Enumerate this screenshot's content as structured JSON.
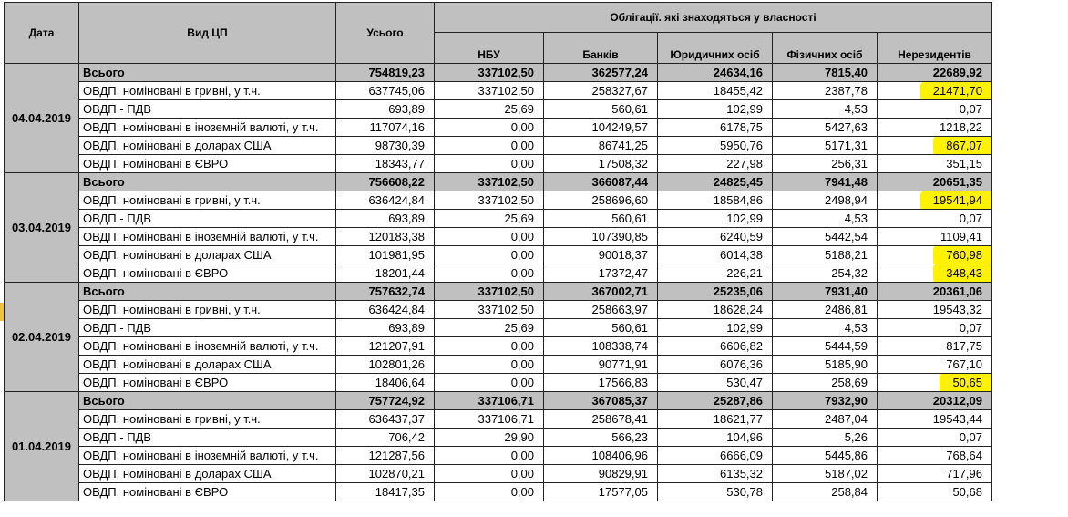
{
  "headers": {
    "date": "Дата",
    "type": "Вид ЦП",
    "total": "Усього",
    "group": "Облігації. які знаходяться у власності",
    "nbu": "НБУ",
    "banks": "Банків",
    "legal": "Юридичних осіб",
    "physical": "Фізичних осіб",
    "nonres": "Нерезидентів"
  },
  "highlight_color": "#fff200",
  "groups": [
    {
      "date": "04.04.2019",
      "rows": [
        {
          "label": "Всього",
          "total": "754819,23",
          "nbu": "337102,50",
          "banks": "362577,24",
          "legal": "24634,16",
          "physical": "7815,40",
          "nonres": "22689,92"
        },
        {
          "label": "ОВДП, номіновані в гривні, у т.ч.",
          "total": "637745,06",
          "nbu": "337102,50",
          "banks": "258327,67",
          "legal": "18455,42",
          "physical": "2387,78",
          "nonres": "21471,70"
        },
        {
          "label": "ОВДП - ПДВ",
          "total": "693,89",
          "nbu": "25,69",
          "banks": "560,61",
          "legal": "102,99",
          "physical": "4,53",
          "nonres": "0,07"
        },
        {
          "label": "ОВДП, номіновані в іноземній валюті, у т.ч.",
          "total": "117074,16",
          "nbu": "0,00",
          "banks": "104249,57",
          "legal": "6178,75",
          "physical": "5427,63",
          "nonres": "1218,22"
        },
        {
          "label": "ОВДП, номіновані в доларах США",
          "total": "98730,39",
          "nbu": "0,00",
          "banks": "86741,25",
          "legal": "5950,76",
          "physical": "5171,31",
          "nonres": "867,07"
        },
        {
          "label": "ОВДП, номіновані в ЄВРО",
          "total": "18343,77",
          "nbu": "0,00",
          "banks": "17508,32",
          "legal": "227,98",
          "physical": "256,31",
          "nonres": "351,15"
        }
      ]
    },
    {
      "date": "03.04.2019",
      "rows": [
        {
          "label": "Всього",
          "total": "756608,22",
          "nbu": "337102,50",
          "banks": "366087,44",
          "legal": "24825,45",
          "physical": "7941,48",
          "nonres": "20651,35"
        },
        {
          "label": "ОВДП, номіновані в гривні, у т.ч.",
          "total": "636424,84",
          "nbu": "337102,50",
          "banks": "258696,60",
          "legal": "18584,86",
          "physical": "2498,94",
          "nonres": "19541,94"
        },
        {
          "label": "ОВДП - ПДВ",
          "total": "693,89",
          "nbu": "25,69",
          "banks": "560,61",
          "legal": "102,99",
          "physical": "4,53",
          "nonres": "0,07"
        },
        {
          "label": "ОВДП, номіновані в іноземній валюті, у т.ч.",
          "total": "120183,38",
          "nbu": "0,00",
          "banks": "107390,85",
          "legal": "6240,59",
          "physical": "5442,54",
          "nonres": "1109,41"
        },
        {
          "label": "ОВДП, номіновані в доларах США",
          "total": "101981,95",
          "nbu": "0,00",
          "banks": "90018,37",
          "legal": "6014,38",
          "physical": "5188,21",
          "nonres": "760,98"
        },
        {
          "label": "ОВДП, номіновані в ЄВРО",
          "total": "18201,44",
          "nbu": "0,00",
          "banks": "17372,47",
          "legal": "226,21",
          "physical": "254,32",
          "nonres": "348,43"
        }
      ]
    },
    {
      "date": "02.04.2019",
      "rows": [
        {
          "label": "Всього",
          "total": "757632,74",
          "nbu": "337102,50",
          "banks": "367002,71",
          "legal": "25235,06",
          "physical": "7931,40",
          "nonres": "20361,06"
        },
        {
          "label": "ОВДП, номіновані в гривні, у т.ч.",
          "total": "636424,84",
          "nbu": "337102,50",
          "banks": "258663,97",
          "legal": "18628,24",
          "physical": "2486,81",
          "nonres": "19543,32"
        },
        {
          "label": "ОВДП - ПДВ",
          "total": "693,89",
          "nbu": "25,69",
          "banks": "560,61",
          "legal": "102,99",
          "physical": "4,53",
          "nonres": "0,07"
        },
        {
          "label": "ОВДП, номіновані в іноземній валюті, у т.ч.",
          "total": "121207,91",
          "nbu": "0,00",
          "banks": "108338,74",
          "legal": "6606,82",
          "physical": "5444,59",
          "nonres": "817,75"
        },
        {
          "label": "ОВДП, номіновані в доларах США",
          "total": "102801,26",
          "nbu": "0,00",
          "banks": "90771,91",
          "legal": "6076,36",
          "physical": "5185,90",
          "nonres": "767,10"
        },
        {
          "label": "ОВДП, номіновані в ЄВРО",
          "total": "18406,64",
          "nbu": "0,00",
          "banks": "17566,83",
          "legal": "530,47",
          "physical": "258,69",
          "nonres": "50,65"
        }
      ]
    },
    {
      "date": "01.04.2019",
      "rows": [
        {
          "label": "Всього",
          "total": "757724,92",
          "nbu": "337106,71",
          "banks": "367085,37",
          "legal": "25287,86",
          "physical": "7932,90",
          "nonres": "20312,09"
        },
        {
          "label": "ОВДП, номіновані в гривні, у т.ч.",
          "total": "636437,37",
          "nbu": "337106,71",
          "banks": "258678,41",
          "legal": "18621,77",
          "physical": "2487,04",
          "nonres": "19543,44"
        },
        {
          "label": "ОВДП - ПДВ",
          "total": "706,42",
          "nbu": "29,90",
          "banks": "566,23",
          "legal": "104,96",
          "physical": "5,26",
          "nonres": "0,07"
        },
        {
          "label": "ОВДП, номіновані в іноземній валюті, у т.ч.",
          "total": "121287,56",
          "nbu": "0,00",
          "banks": "108406,96",
          "legal": "6666,09",
          "physical": "5445,86",
          "nonres": "768,64"
        },
        {
          "label": "ОВДП, номіновані в доларах США",
          "total": "102870,21",
          "nbu": "0,00",
          "banks": "90829,91",
          "legal": "6135,32",
          "physical": "5187,02",
          "nonres": "717,96"
        },
        {
          "label": "ОВДП, номіновані в ЄВРО",
          "total": "18417,35",
          "nbu": "0,00",
          "banks": "17577,05",
          "legal": "530,78",
          "physical": "258,84",
          "nonres": "50,68"
        }
      ]
    }
  ]
}
